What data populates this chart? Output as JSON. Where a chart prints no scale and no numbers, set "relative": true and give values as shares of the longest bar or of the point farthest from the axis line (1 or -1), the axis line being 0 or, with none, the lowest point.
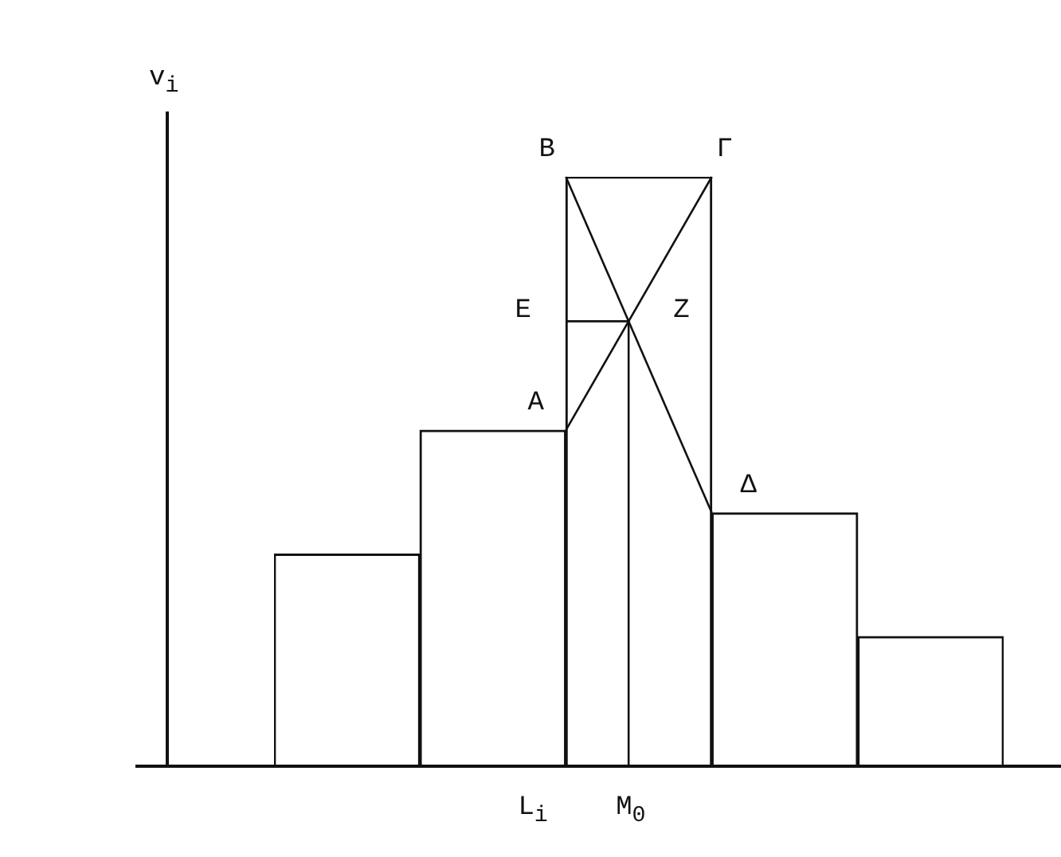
{
  "chart_data": {
    "type": "bar",
    "relative": true,
    "ylabel": "v$_{i}$",
    "categories": [
      null,
      null,
      null,
      null,
      null
    ],
    "values": [
      0.36,
      0.57,
      1,
      0.43,
      0.22
    ],
    "color": "#ffffff",
    "legend": false,
    "tick_labels": false,
    "annotations": [
      "B",
      "Γ",
      "E",
      "Z",
      "A",
      "Δ",
      "L$_{i}$",
      "M$_{0}$"
    ]
  }
}
